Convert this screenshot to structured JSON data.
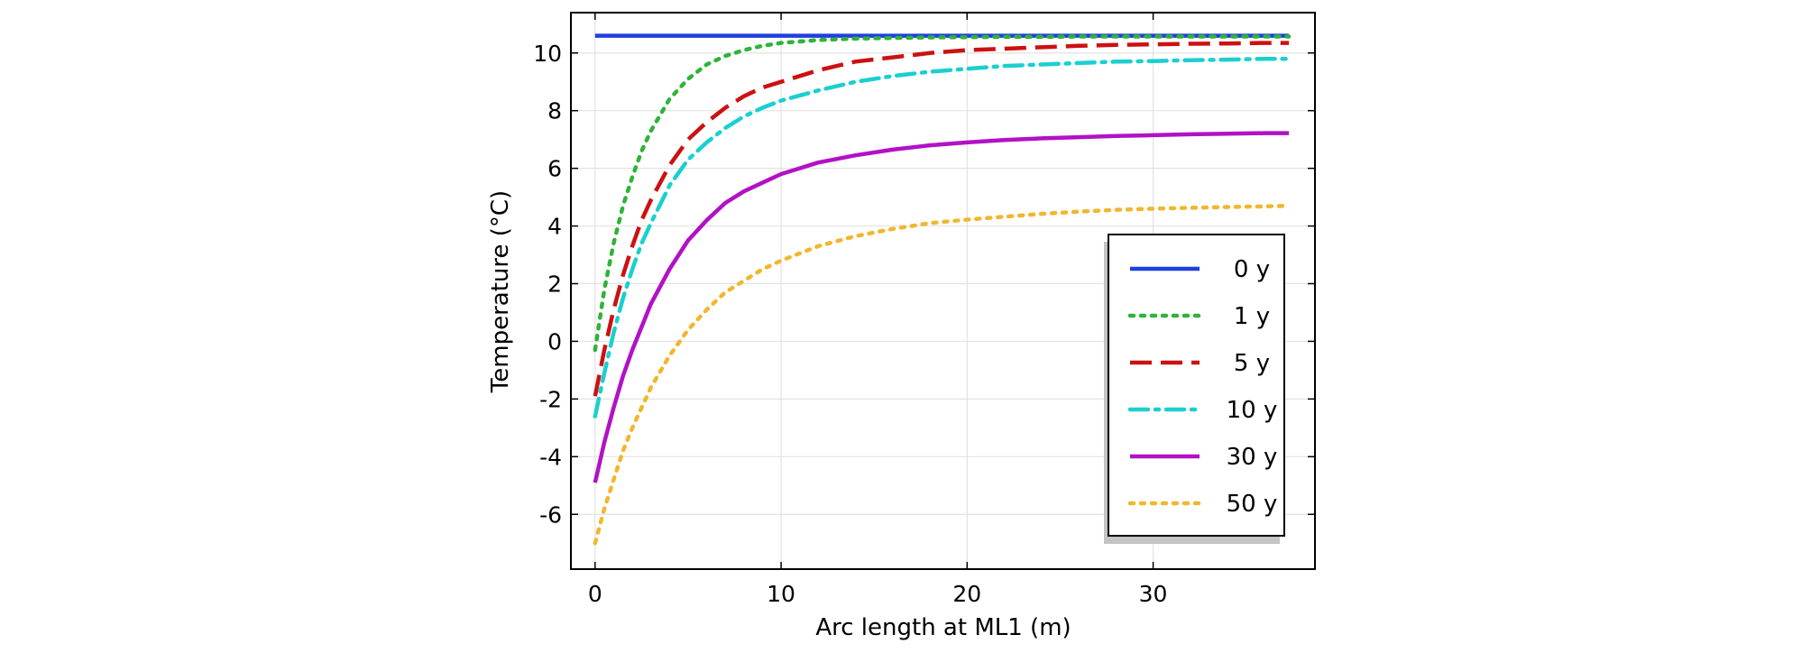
{
  "chart_data": {
    "type": "line",
    "title": "",
    "xlabel": "Arc length at ML1 (m)",
    "ylabel": "Temperature (°C)",
    "xlim": [
      -1.3,
      38.7
    ],
    "ylim": [
      -7.9,
      11.4
    ],
    "xticks": [
      0,
      10,
      20,
      30
    ],
    "yticks": [
      -6,
      -4,
      -2,
      0,
      2,
      4,
      6,
      8,
      10
    ],
    "grid": true,
    "legend_position": "right",
    "x": [
      0,
      0.5,
      1,
      1.5,
      2,
      2.5,
      3,
      4,
      5,
      6,
      7,
      8,
      9,
      10,
      12,
      14,
      16,
      18,
      20,
      22,
      24,
      26,
      28,
      30,
      32,
      34,
      36,
      37.3
    ],
    "series": [
      {
        "name": "0 y",
        "color": "#1f3fe0",
        "dash": "solid",
        "values": [
          10.6,
          10.6,
          10.6,
          10.6,
          10.6,
          10.6,
          10.6,
          10.6,
          10.6,
          10.6,
          10.6,
          10.6,
          10.6,
          10.6,
          10.6,
          10.6,
          10.6,
          10.6,
          10.6,
          10.6,
          10.6,
          10.6,
          10.6,
          10.6,
          10.6,
          10.6,
          10.6,
          10.6
        ]
      },
      {
        "name": "1 y",
        "color": "#2fb33a",
        "dash": "dot",
        "values": [
          -0.3,
          1.8,
          3.4,
          4.7,
          5.7,
          6.6,
          7.3,
          8.4,
          9.1,
          9.6,
          9.9,
          10.1,
          10.25,
          10.35,
          10.45,
          10.5,
          10.52,
          10.54,
          10.55,
          10.56,
          10.56,
          10.57,
          10.57,
          10.57,
          10.57,
          10.57,
          10.57,
          10.57
        ]
      },
      {
        "name": "5 y",
        "color": "#cc1111",
        "dash": "dash",
        "values": [
          -1.9,
          -0.3,
          1.1,
          2.3,
          3.3,
          4.2,
          4.9,
          6.1,
          7.0,
          7.6,
          8.1,
          8.5,
          8.8,
          9.0,
          9.4,
          9.7,
          9.85,
          10.0,
          10.1,
          10.15,
          10.2,
          10.25,
          10.28,
          10.3,
          10.32,
          10.33,
          10.35,
          10.35
        ]
      },
      {
        "name": "10 y",
        "color": "#1ccfcf",
        "dash": "dashdot",
        "values": [
          -2.6,
          -1.1,
          0.3,
          1.5,
          2.5,
          3.4,
          4.1,
          5.4,
          6.3,
          6.9,
          7.4,
          7.8,
          8.1,
          8.35,
          8.7,
          9.0,
          9.2,
          9.35,
          9.45,
          9.55,
          9.6,
          9.65,
          9.7,
          9.72,
          9.75,
          9.77,
          9.8,
          9.8
        ]
      },
      {
        "name": "30 y",
        "color": "#b211c6",
        "dash": "solid",
        "values": [
          -4.9,
          -3.5,
          -2.3,
          -1.2,
          -0.3,
          0.5,
          1.3,
          2.5,
          3.5,
          4.2,
          4.8,
          5.2,
          5.5,
          5.8,
          6.2,
          6.45,
          6.65,
          6.8,
          6.9,
          6.98,
          7.04,
          7.08,
          7.12,
          7.15,
          7.18,
          7.2,
          7.22,
          7.22
        ]
      },
      {
        "name": "50 y",
        "color": "#f0b72f",
        "dash": "dot",
        "values": [
          -7.0,
          -5.8,
          -4.8,
          -3.8,
          -3.0,
          -2.3,
          -1.6,
          -0.5,
          0.4,
          1.1,
          1.7,
          2.1,
          2.5,
          2.8,
          3.3,
          3.65,
          3.9,
          4.1,
          4.22,
          4.32,
          4.42,
          4.5,
          4.56,
          4.6,
          4.63,
          4.66,
          4.68,
          4.7
        ]
      }
    ]
  }
}
